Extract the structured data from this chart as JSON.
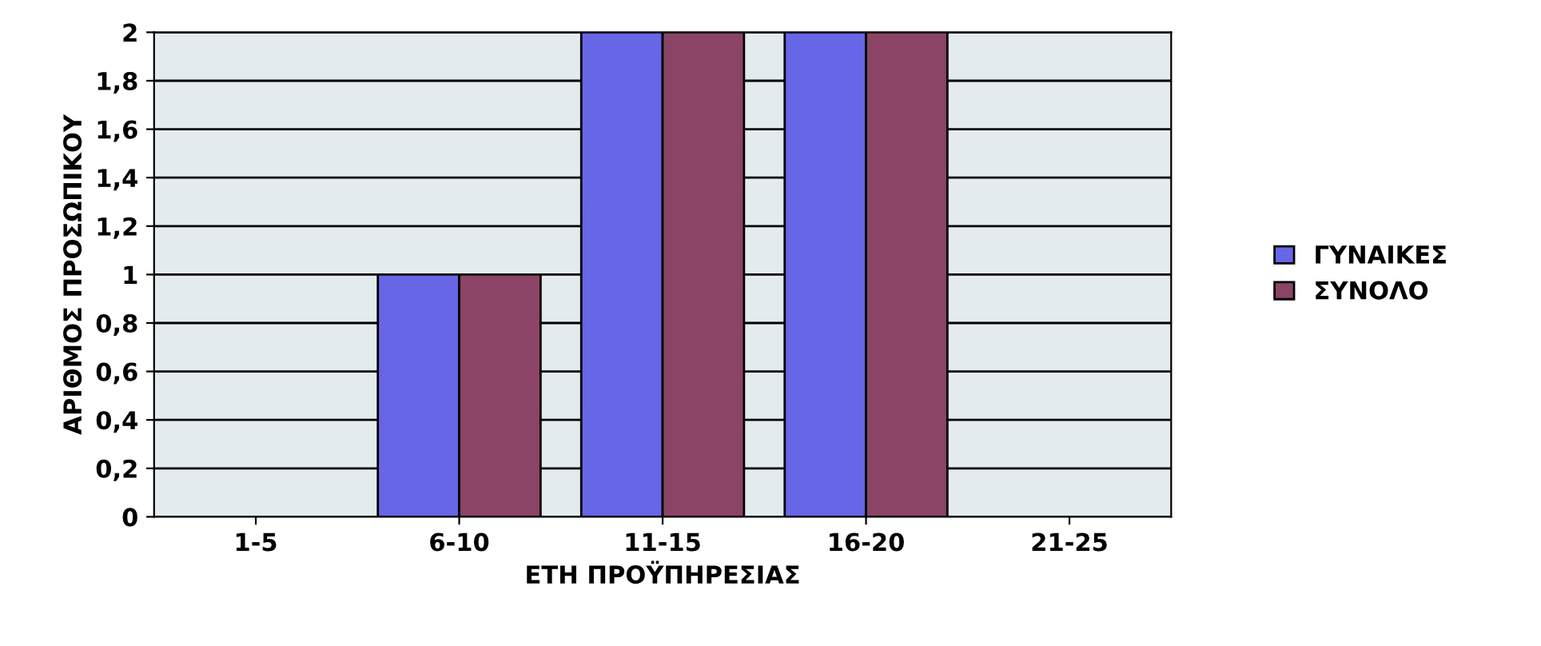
{
  "chart_data": {
    "type": "bar",
    "xlabel": "ΕΤΗ ΠΡΟΫΠΗΡΕΣΙΑΣ",
    "ylabel": "ΑΡΙΘΜΟΣ ΠΡΟΣΩΠΙΚΟΥ",
    "categories": [
      "1-5",
      "6-10",
      "11-15",
      "16-20",
      "21-25"
    ],
    "series": [
      {
        "name": "ΓΥΝΑΙΚΕΣ",
        "color": "#6666e6",
        "values": [
          0,
          1,
          2,
          2,
          0
        ]
      },
      {
        "name": "ΣΥΝΟΛΟ",
        "color": "#8c4466",
        "values": [
          0,
          1,
          2,
          2,
          0
        ]
      }
    ],
    "ylim": [
      0,
      2
    ],
    "yticks": [
      0,
      {
        "value": 0.2,
        "label": "0,2"
      },
      {
        "value": 0.4,
        "label": "0,4"
      },
      {
        "value": 0.6,
        "label": "0,6"
      },
      {
        "value": 0.8,
        "label": "0,8"
      },
      1,
      {
        "value": 1.2,
        "label": "1,2"
      },
      {
        "value": 1.4,
        "label": "1,4"
      },
      {
        "value": 1.6,
        "label": "1,6"
      },
      {
        "value": 1.8,
        "label": "1,8"
      },
      2
    ],
    "grid": "y",
    "legend": "right"
  }
}
